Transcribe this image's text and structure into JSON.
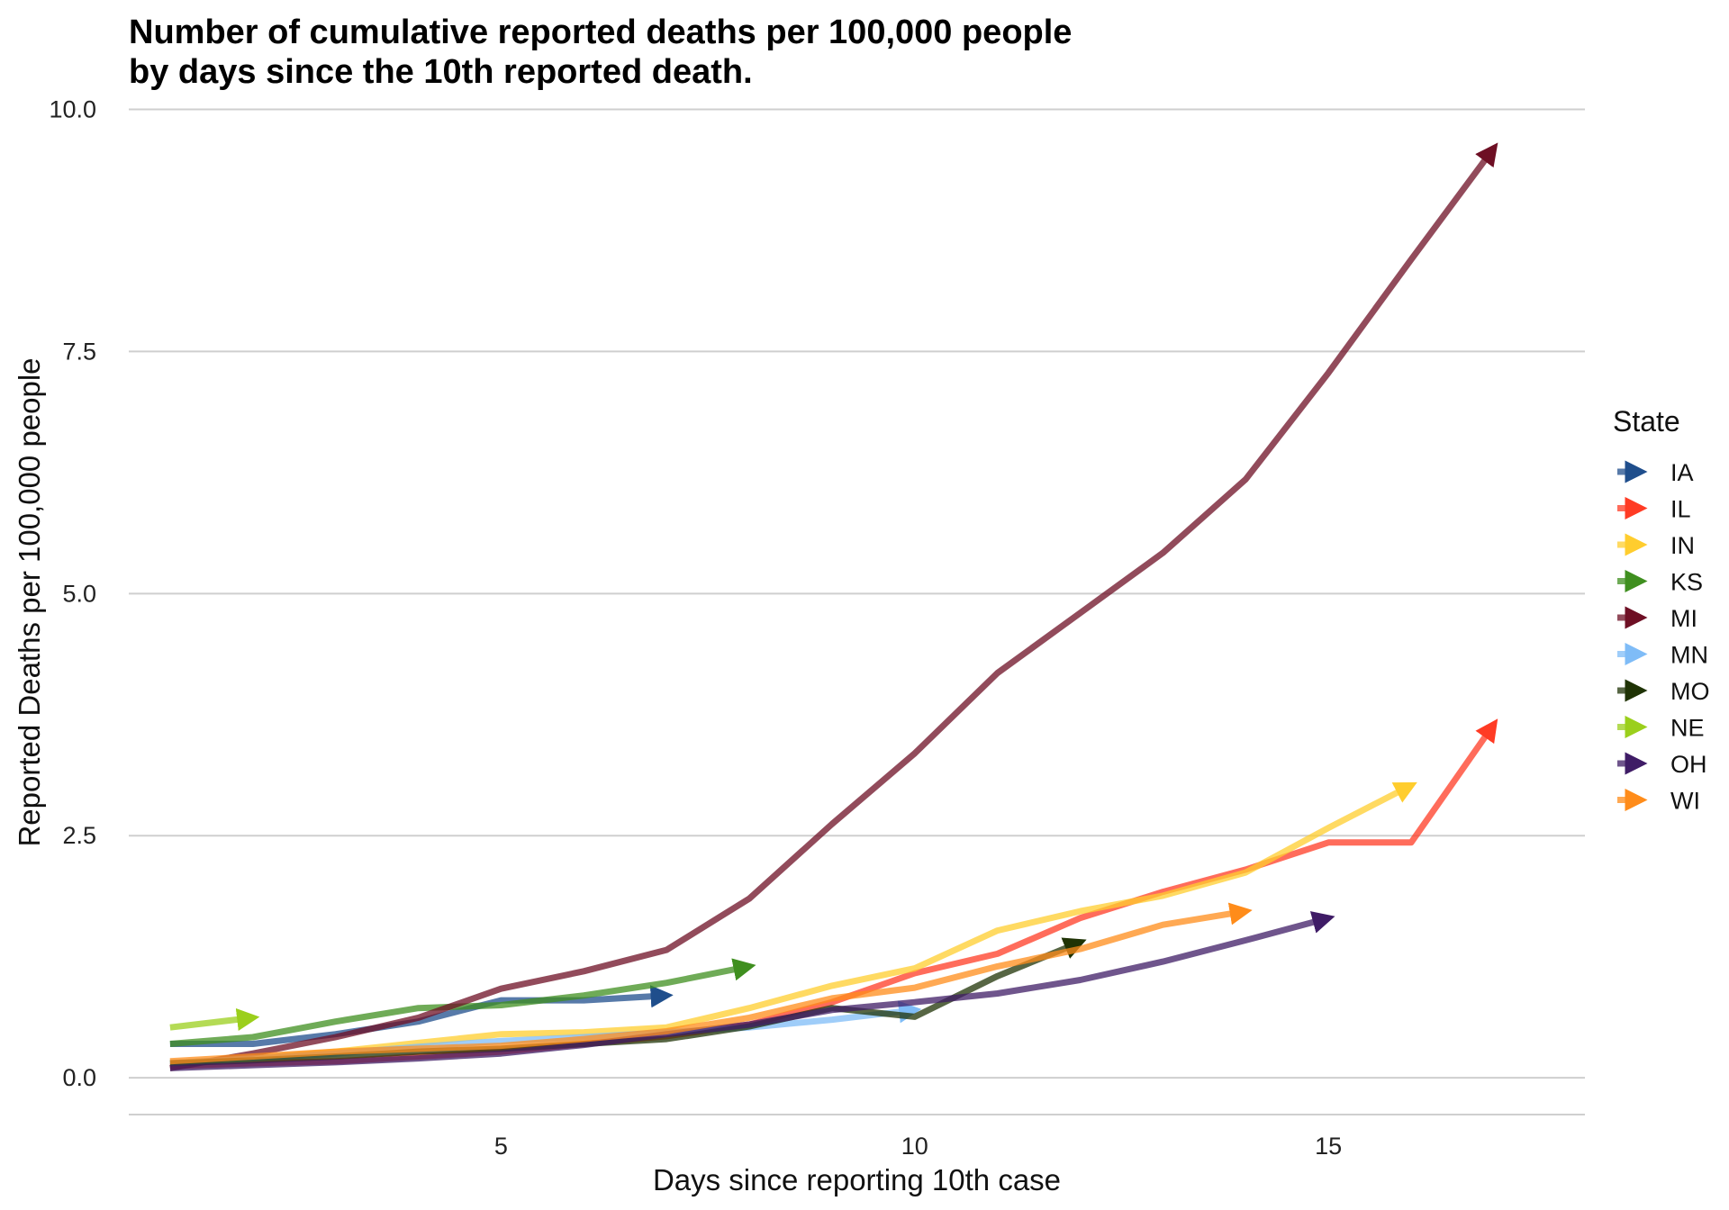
{
  "chart_data": {
    "type": "line",
    "title_lines": [
      "Number of cumulative reported deaths per 100,000 people",
      "by days since the 10th reported death."
    ],
    "xlabel": "Days since reporting 10th case",
    "ylabel": "Reported Deaths per 100,000 people",
    "xlim": [
      0.5,
      18.1
    ],
    "ylim": [
      -0.38,
      10.2
    ],
    "x_ticks": [
      5,
      10,
      15
    ],
    "y_ticks": [
      0,
      2.5,
      5,
      7.5,
      10
    ],
    "y_tick_labels": [
      "0.0",
      "2.5",
      "5.0",
      "7.5",
      "10.0"
    ],
    "grid": "horizontal major",
    "legend_title": "State",
    "legend_position": "right",
    "series": [
      {
        "name": "IA",
        "color": "#1f4e8c",
        "x": [
          1,
          2,
          3,
          4,
          5,
          6,
          7
        ],
        "y": [
          0.35,
          0.35,
          0.45,
          0.58,
          0.8,
          0.8,
          0.85
        ]
      },
      {
        "name": "IL",
        "color": "#ff3b24",
        "x": [
          1,
          2,
          3,
          4,
          5,
          6,
          7,
          8,
          9,
          10,
          11,
          12,
          13,
          14,
          15,
          16,
          17
        ],
        "y": [
          0.12,
          0.15,
          0.17,
          0.22,
          0.27,
          0.35,
          0.43,
          0.55,
          0.78,
          1.08,
          1.28,
          1.65,
          1.92,
          2.15,
          2.43,
          2.43,
          3.65
        ]
      },
      {
        "name": "IN",
        "color": "#ffcd2e",
        "x": [
          1,
          2,
          3,
          4,
          5,
          6,
          7,
          8,
          9,
          10,
          11,
          12,
          13,
          14,
          15,
          16
        ],
        "y": [
          0.15,
          0.2,
          0.27,
          0.36,
          0.45,
          0.47,
          0.52,
          0.72,
          0.95,
          1.13,
          1.52,
          1.72,
          1.88,
          2.12,
          2.58,
          3.02
        ]
      },
      {
        "name": "KS",
        "color": "#3f8f1f",
        "x": [
          1,
          2,
          3,
          4,
          5,
          6,
          7,
          8
        ],
        "y": [
          0.35,
          0.42,
          0.58,
          0.72,
          0.75,
          0.85,
          0.98,
          1.15
        ]
      },
      {
        "name": "MI",
        "color": "#6e0f24",
        "x": [
          1,
          2,
          3,
          4,
          5,
          6,
          7,
          8,
          9,
          10,
          11,
          12,
          13,
          14,
          15,
          16,
          17
        ],
        "y": [
          0.1,
          0.25,
          0.42,
          0.62,
          0.92,
          1.1,
          1.32,
          1.85,
          2.62,
          3.35,
          4.18,
          4.8,
          5.42,
          6.18,
          7.28,
          8.45,
          9.6
        ]
      },
      {
        "name": "MN",
        "color": "#7fbcf7",
        "x": [
          1,
          2,
          3,
          4,
          5,
          6,
          7,
          8,
          9,
          10
        ],
        "y": [
          0.15,
          0.2,
          0.25,
          0.32,
          0.38,
          0.42,
          0.47,
          0.52,
          0.6,
          0.7
        ]
      },
      {
        "name": "MO",
        "color": "#1f3305",
        "x": [
          1,
          2,
          3,
          4,
          5,
          6,
          7,
          8,
          9,
          10,
          11,
          12
        ],
        "y": [
          0.15,
          0.18,
          0.22,
          0.27,
          0.3,
          0.35,
          0.4,
          0.53,
          0.72,
          0.63,
          1.05,
          1.4
        ]
      },
      {
        "name": "NE",
        "color": "#9bcf1c",
        "x": [
          1,
          2
        ],
        "y": [
          0.52,
          0.62
        ]
      },
      {
        "name": "OH",
        "color": "#3f1c66",
        "x": [
          1,
          2,
          3,
          4,
          5,
          6,
          7,
          8,
          9,
          10,
          11,
          12,
          13,
          14,
          15
        ],
        "y": [
          0.1,
          0.13,
          0.16,
          0.2,
          0.25,
          0.34,
          0.45,
          0.55,
          0.7,
          0.78,
          0.87,
          1.01,
          1.2,
          1.42,
          1.65
        ]
      },
      {
        "name": "WI",
        "color": "#ff8c1a",
        "x": [
          1,
          2,
          3,
          4,
          5,
          6,
          7,
          8,
          9,
          10,
          11,
          12,
          13,
          14
        ],
        "y": [
          0.17,
          0.22,
          0.27,
          0.3,
          0.33,
          0.4,
          0.48,
          0.62,
          0.82,
          0.93,
          1.15,
          1.33,
          1.58,
          1.72
        ]
      }
    ]
  }
}
